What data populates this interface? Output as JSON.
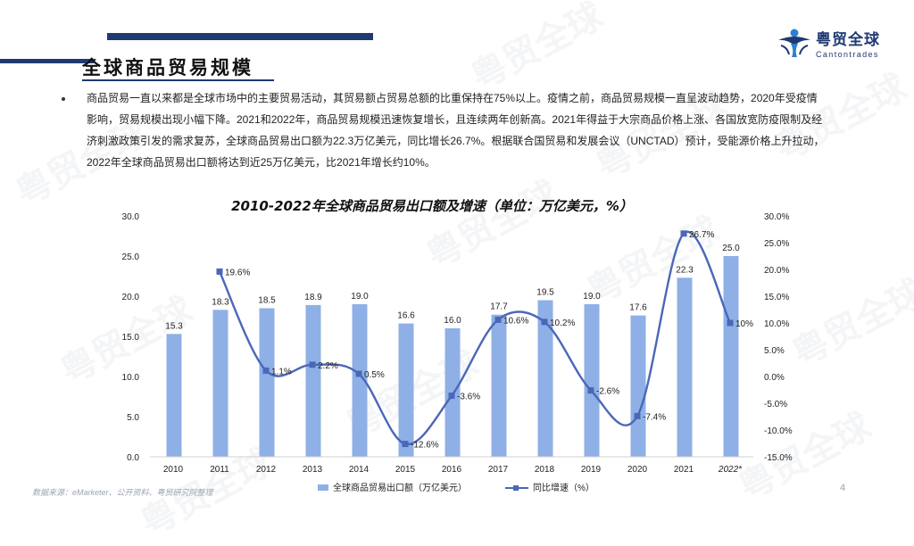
{
  "header": {
    "title": "全球商品贸易规模"
  },
  "logo": {
    "name_cn": "粤贸全球",
    "name_en": "Cantontrades"
  },
  "watermark": {
    "text": "粤贸全球"
  },
  "body": {
    "paragraph": "商品贸易一直以来都是全球市场中的主要贸易活动，其贸易额占贸易总额的比重保持在75%以上。疫情之前，商品贸易规模一直呈波动趋势，2020年受疫情影响，贸易规模出现小幅下降。2021和2022年，商品贸易规模迅速恢复增长，且连续两年创新高。2021年得益于大宗商品价格上涨、各国放宽防疫限制及经济刺激政策引发的需求复苏，全球商品贸易出口额为22.3万亿美元，同比增长26.7%。根据联合国贸易和发展会议（UNCTAD）预计，受能源价格上升拉动，2022年全球商品贸易出口额将达到近25万亿美元，比2021年增长约10%。"
  },
  "footer": {
    "source": "数据来源：eMarketer、公开资料、粤贸研究院整理",
    "page_number": "4"
  },
  "colors": {
    "bar": "#8fb0e6",
    "line": "#4a67b8",
    "marker": "#4a67b8",
    "navy": "#1f3a73"
  },
  "chart_data": {
    "type": "bar+line",
    "title": "2010-2022年全球商品贸易出口额及增速（单位：万亿美元，%）",
    "categories": [
      "2010",
      "2011",
      "2012",
      "2013",
      "2014",
      "2015",
      "2016",
      "2017",
      "2018",
      "2019",
      "2020",
      "2021",
      "2022*"
    ],
    "y_left": {
      "range": [
        0,
        30
      ],
      "ticks": [
        "0.0",
        "5.0",
        "10.0",
        "15.0",
        "20.0",
        "25.0",
        "30.0"
      ]
    },
    "y_right": {
      "range": [
        -15,
        30
      ],
      "ticks": [
        "-15.0%",
        "-10.0%",
        "-5.0%",
        "0.0%",
        "5.0%",
        "10.0%",
        "15.0%",
        "20.0%",
        "25.0%",
        "30.0%"
      ]
    },
    "series": [
      {
        "name": "全球商品贸易出口额（万亿美元）",
        "type": "bar",
        "axis": "left",
        "values": [
          15.3,
          18.3,
          18.5,
          18.9,
          19.0,
          16.6,
          16.0,
          17.7,
          19.5,
          19.0,
          17.6,
          22.3,
          25.0
        ],
        "labels": [
          "15.3",
          "18.3",
          "18.5",
          "18.9",
          "19.0",
          "16.6",
          "16.0",
          "17.7",
          "19.5",
          "19.0",
          "17.6",
          "22.3",
          "25.0"
        ]
      },
      {
        "name": "同比增速（%）",
        "type": "line",
        "axis": "right",
        "values": [
          null,
          19.6,
          1.1,
          2.2,
          0.5,
          -12.6,
          -3.6,
          10.6,
          10.2,
          -2.6,
          -7.4,
          26.7,
          10
        ],
        "labels": [
          "",
          "19.6%",
          "1.1%",
          "2.2%",
          "0.5%",
          "-12.6%",
          "-3.6%",
          "10.6%",
          "10.2%",
          "-2.6%",
          "-7.4%",
          "26.7%",
          "10%"
        ]
      }
    ],
    "legend_position": "bottom"
  }
}
